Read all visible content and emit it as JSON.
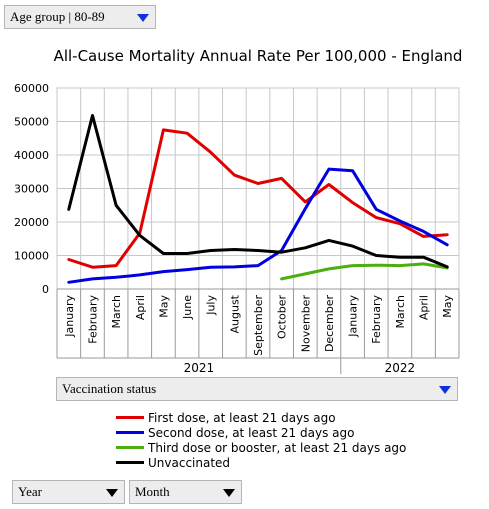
{
  "controls": {
    "age_group": "Age group | 80-89",
    "vaccination_status": "Vaccination status",
    "year": "Year",
    "month": "Month"
  },
  "chart_data": {
    "type": "line",
    "title": "All-Cause Mortality Annual Rate Per 100,000 - England",
    "ylim": [
      0,
      60000
    ],
    "yticks": [
      0,
      10000,
      20000,
      30000,
      40000,
      50000,
      60000
    ],
    "ytick_labels": [
      "0",
      "10000",
      "20000",
      "30000",
      "40000",
      "50000",
      "60000"
    ],
    "grid": true,
    "legend_position": "bottom",
    "categories": [
      "January",
      "February",
      "March",
      "April",
      "May",
      "June",
      "July",
      "August",
      "September",
      "October",
      "November",
      "December",
      "January",
      "February",
      "March",
      "April",
      "May"
    ],
    "years": [
      {
        "label": "2021",
        "start": 0,
        "end": 11
      },
      {
        "label": "2022",
        "start": 12,
        "end": 16
      }
    ],
    "series": [
      {
        "name": "First dose, at least 21 days ago",
        "color": "#e00000",
        "values": [
          8800,
          6500,
          7000,
          16700,
          47500,
          46500,
          40800,
          34000,
          31500,
          33000,
          26000,
          31200,
          25800,
          21300,
          19500,
          15700,
          16200
        ]
      },
      {
        "name": "Second dose, at least 21 days ago",
        "color": "#0000e0",
        "values": [
          2000,
          3000,
          3500,
          4200,
          5200,
          5800,
          6500,
          6600,
          7000,
          11500,
          24000,
          35800,
          35300,
          23800,
          20300,
          17200,
          13200
        ]
      },
      {
        "name": "Third dose or booster, at least 21 days ago",
        "color": "#4caf10",
        "values": [
          null,
          null,
          null,
          null,
          null,
          null,
          null,
          null,
          null,
          3000,
          4500,
          6000,
          7000,
          7100,
          7000,
          7500,
          6300
        ]
      },
      {
        "name": "Unvaccinated",
        "color": "#000000",
        "values": [
          23800,
          51800,
          25000,
          16000,
          10600,
          10600,
          11500,
          11800,
          11500,
          11000,
          12300,
          14500,
          12800,
          10000,
          9500,
          9500,
          6600
        ]
      }
    ]
  }
}
